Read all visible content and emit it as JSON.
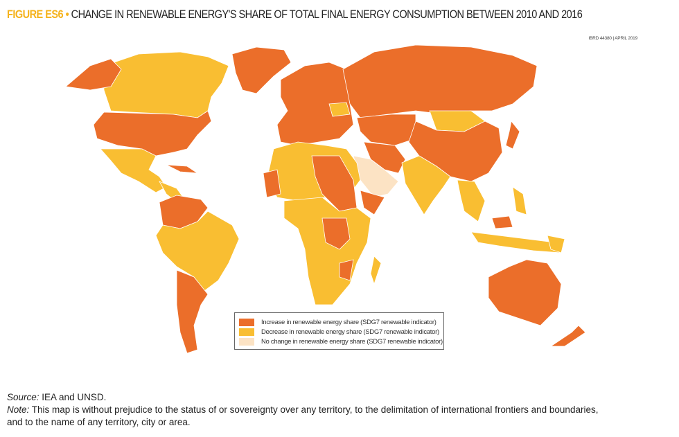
{
  "header": {
    "figure_label": "FIGURE ES6",
    "bullet": "•",
    "title": "CHANGE IN RENEWABLE ENERGY'S SHARE OF TOTAL FINAL ENERGY CONSUMPTION BETWEEN 2010 AND 2016"
  },
  "map_id": "IBRD 44380 | APRIL 2019",
  "colors": {
    "increase": "#EB6E2A",
    "decrease": "#F9BE32",
    "no_change": "#FCE3C4"
  },
  "legend": [
    {
      "key": "increase",
      "label": "Increase in renewable energy share (SDG7 renewable indicator)"
    },
    {
      "key": "decrease",
      "label": "Decrease in renewable energy share (SDG7 renewable indicator)"
    },
    {
      "key": "no_change",
      "label": "No change in renewable energy share (SDG7 renewable indicator)"
    }
  ],
  "footer": {
    "source_label": "Source:",
    "source_text": " IEA and UNSD.",
    "note_label": "Note:",
    "note_line1": " This map is without prejudice to the status of or sovereignty over any territory, to the delimitation of international frontiers and boundaries,",
    "note_line2": "and to the name of any territory, city or area."
  }
}
